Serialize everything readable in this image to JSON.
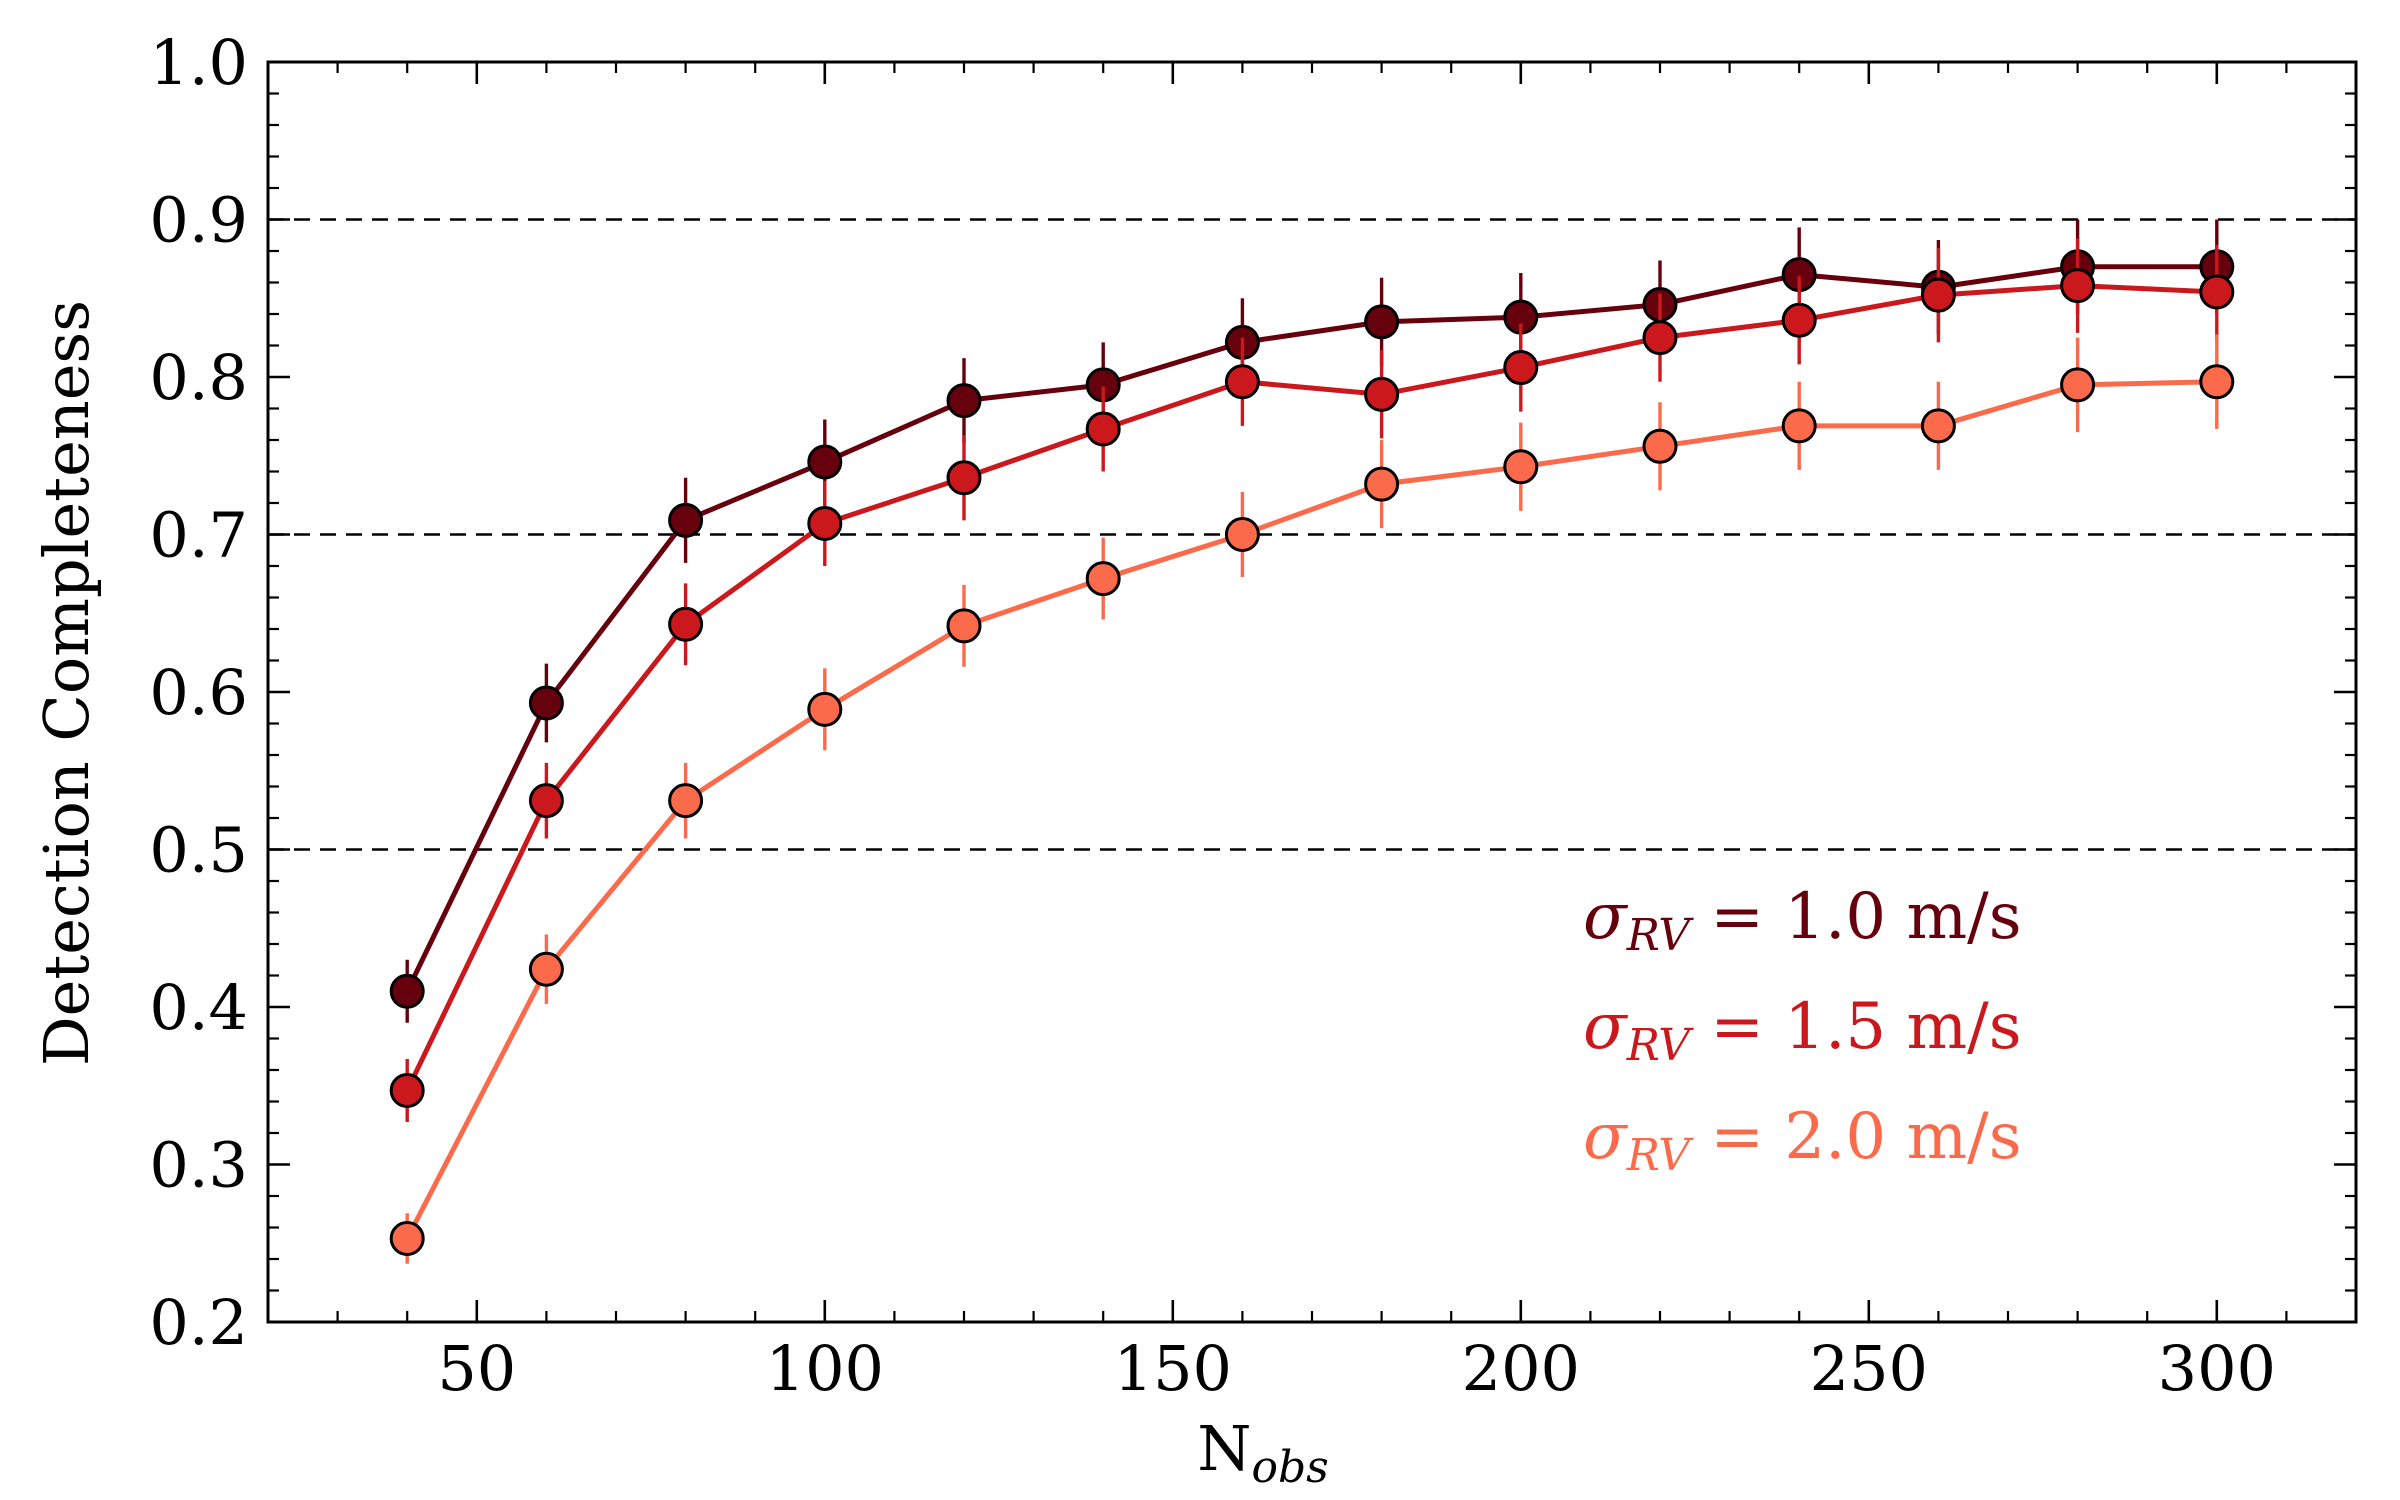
{
  "chart_data": {
    "type": "line",
    "title": "",
    "xlabel": "N",
    "xlabel_sub": "obs",
    "ylabel": "Detection Completeness",
    "xlim": [
      20,
      320
    ],
    "ylim": [
      0.2,
      1.0
    ],
    "xticks": [
      50,
      100,
      150,
      200,
      250,
      300
    ],
    "xtick_labels": [
      "50",
      "100",
      "150",
      "200",
      "250",
      "300"
    ],
    "yticks": [
      0.2,
      0.3,
      0.4,
      0.5,
      0.6,
      0.7,
      0.8,
      0.9,
      1.0
    ],
    "ytick_labels": [
      "0.2",
      "0.3",
      "0.4",
      "0.5",
      "0.6",
      "0.7",
      "0.8",
      "0.9",
      "1.0"
    ],
    "hlines": [
      0.5,
      0.7,
      0.9
    ],
    "legend_position": "lower-right",
    "x": [
      40,
      60,
      80,
      100,
      120,
      140,
      160,
      180,
      200,
      220,
      240,
      260,
      280,
      300
    ],
    "series": [
      {
        "name": "σRV = 1.0 m/s",
        "symbol": "σ",
        "sub": "RV",
        "rest": " = 1.0 m/s",
        "color": "#67000d",
        "values": [
          0.41,
          0.593,
          0.709,
          0.746,
          0.785,
          0.795,
          0.822,
          0.835,
          0.838,
          0.846,
          0.865,
          0.857,
          0.87,
          0.87
        ],
        "errors": [
          0.02,
          0.025,
          0.027,
          0.027,
          0.027,
          0.027,
          0.028,
          0.028,
          0.028,
          0.028,
          0.03,
          0.03,
          0.03,
          0.03
        ]
      },
      {
        "name": "σRV = 1.5 m/s",
        "symbol": "σ",
        "sub": "RV",
        "rest": " = 1.5 m/s",
        "color": "#cb181d",
        "values": [
          0.347,
          0.531,
          0.643,
          0.707,
          0.736,
          0.767,
          0.797,
          0.789,
          0.806,
          0.825,
          0.836,
          0.852,
          0.858,
          0.854
        ],
        "errors": [
          0.02,
          0.024,
          0.026,
          0.027,
          0.027,
          0.027,
          0.028,
          0.028,
          0.028,
          0.028,
          0.028,
          0.03,
          0.03,
          0.03
        ]
      },
      {
        "name": "σRV = 2.0 m/s",
        "symbol": "σ",
        "sub": "RV",
        "rest": " = 2.0 m/s",
        "color": "#fb6a4a",
        "values": [
          0.253,
          0.424,
          0.531,
          0.589,
          0.642,
          0.672,
          0.7,
          0.732,
          0.743,
          0.756,
          0.769,
          0.769,
          0.795,
          0.797
        ],
        "errors": [
          0.016,
          0.022,
          0.024,
          0.026,
          0.026,
          0.026,
          0.027,
          0.028,
          0.028,
          0.028,
          0.028,
          0.028,
          0.03,
          0.03
        ]
      }
    ]
  }
}
